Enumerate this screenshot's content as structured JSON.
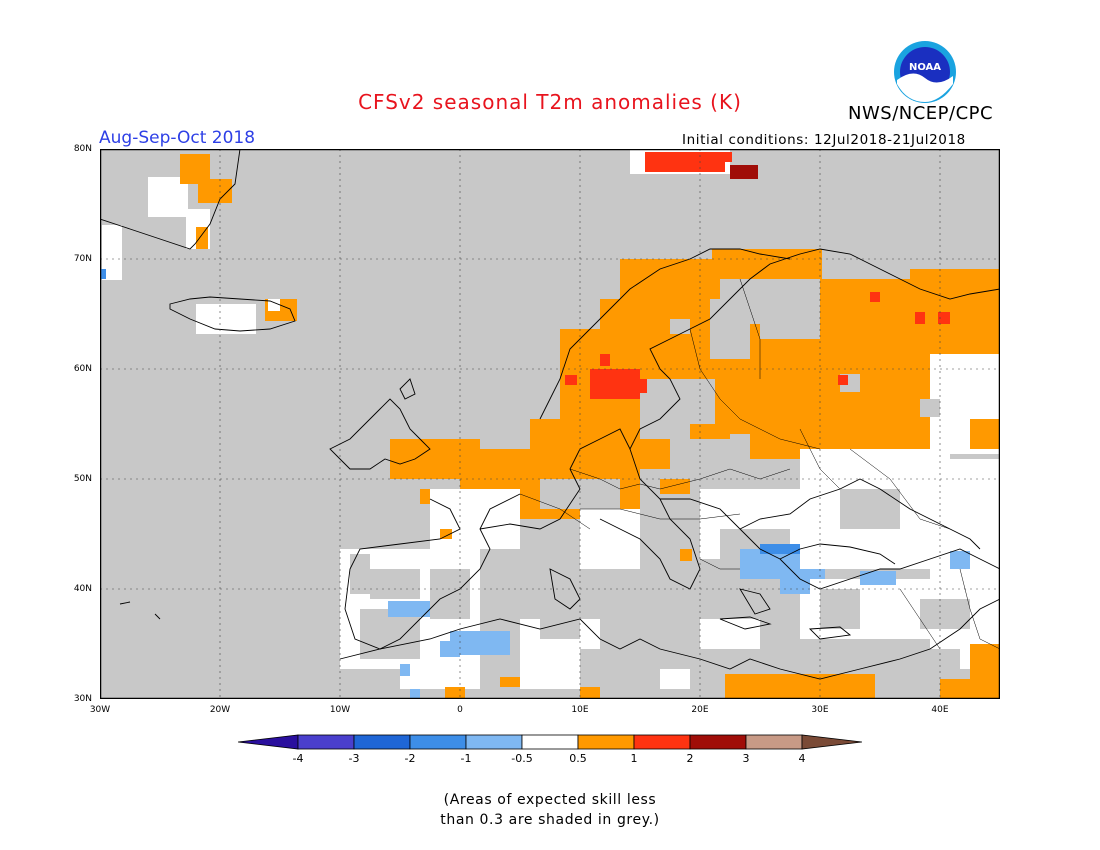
{
  "title": "CFSv2 seasonal T2m anomalies (K)",
  "org": "NWS/NCEP/CPC",
  "logo_text": "NOAA",
  "season": "Aug-Sep-Oct 2018",
  "initial_conditions": "Initial conditions: 12Jul2018-21Jul2018",
  "lat_labels": [
    "80N",
    "70N",
    "60N",
    "50N",
    "40N",
    "30N"
  ],
  "lon_labels": [
    "30W",
    "20W",
    "10W",
    "0",
    "10E",
    "20E",
    "30E",
    "40E"
  ],
  "colorbar": {
    "labels": [
      "-4",
      "-3",
      "-2",
      "-1",
      "-0.5",
      "0.5",
      "1",
      "2",
      "3",
      "4"
    ],
    "colors": [
      "#2a0f9e",
      "#4a3fcd",
      "#1f66d6",
      "#3d8ee8",
      "#7fb8f2",
      "#ffffff",
      "#ff9900",
      "#ff3311",
      "#a00d08",
      "#c89a86",
      "#7a4a36"
    ]
  },
  "colors": {
    "skill_grey": "#c8c8c8",
    "title_red": "#e8141e",
    "season_blue": "#2d3fe6"
  },
  "note_line1": "(Areas of expected skill less",
  "note_line2": "than 0.3 are shaded in grey.)",
  "map_data": {
    "lon_range": [
      -30,
      45
    ],
    "lat_range": [
      30,
      80
    ],
    "regions": [
      {
        "name": "Scandinavia",
        "anomaly_class": "0.5 to 1"
      },
      {
        "name": "Western Russia",
        "anomaly_class": "0.5 to 1"
      },
      {
        "name": "Central Europe",
        "anomaly_class": "0.5 to 1"
      },
      {
        "name": "South Sweden",
        "anomaly_class": "1 to 2"
      },
      {
        "name": "Svalbard",
        "anomaly_class": "2 to 3"
      },
      {
        "name": "Iberia / Morocco",
        "anomaly_class": "-1 to -0.5"
      },
      {
        "name": "Black Sea",
        "anomaly_class": "-1 to -0.5"
      }
    ]
  }
}
